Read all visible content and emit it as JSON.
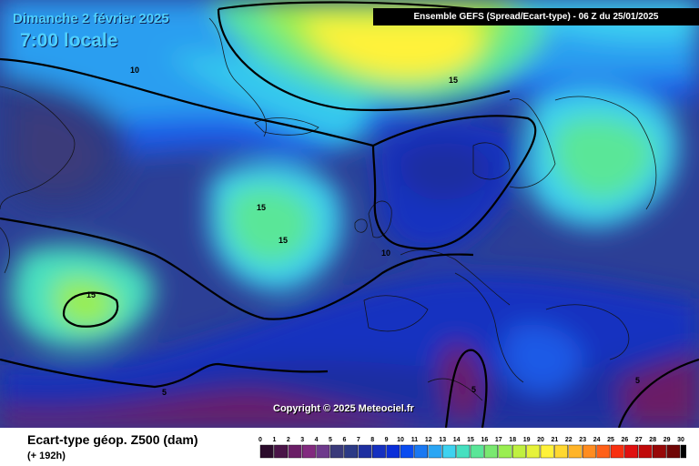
{
  "header": {
    "date": "Dimanche 2 février 2025",
    "local_time": "7:00 locale",
    "model_run": "Ensemble GEFS  (Spread/Ecart-type) - 06 Z du 25/01/2025"
  },
  "copyright": "Copyright © 2025 Meteociel.fr",
  "footer": {
    "parameter": "Ecart-type géop. Z500 (dam)",
    "lead_time": "(+ 192h)"
  },
  "contour_labels": [
    "10",
    "15",
    "15",
    "15",
    "15",
    "10",
    "5",
    "5",
    "5"
  ],
  "legend": {
    "values": [
      "0",
      "1",
      "2",
      "3",
      "4",
      "5",
      "6",
      "7",
      "8",
      "9",
      "10",
      "11",
      "12",
      "13",
      "14",
      "15",
      "16",
      "17",
      "18",
      "19",
      "20",
      "21",
      "22",
      "23",
      "24",
      "25",
      "26",
      "27",
      "28",
      "29",
      "30"
    ],
    "colors": [
      "#2b0b2b",
      "#4a1448",
      "#6a1e66",
      "#822a7f",
      "#6e3a8c",
      "#3a3a7a",
      "#2c3a86",
      "#1e2fa0",
      "#1530c0",
      "#0a2ed8",
      "#0a4cf0",
      "#1a78f2",
      "#2aa6f4",
      "#3ed2f0",
      "#46e0c0",
      "#5ae698",
      "#7ae870",
      "#9aee50",
      "#c0f040",
      "#e6f23a",
      "#fff23a",
      "#ffd830",
      "#ffb428",
      "#ff8c20",
      "#ff6018",
      "#f83010",
      "#e01010",
      "#c00a0a",
      "#980808",
      "#700606",
      "#000000"
    ]
  }
}
